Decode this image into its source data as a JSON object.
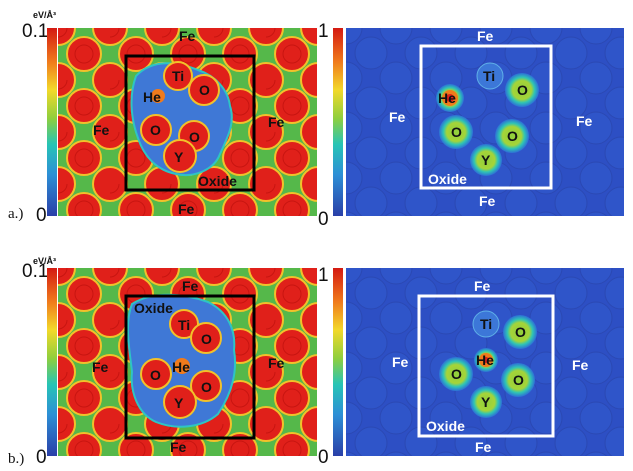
{
  "scale_left": {
    "max": "0.1",
    "min": "0",
    "unit": "eV/Å³"
  },
  "scale_right": {
    "max": "1",
    "min": "0"
  },
  "captions": {
    "a": "a.)",
    "b": "b.)"
  },
  "labels": {
    "fe": "Fe",
    "ti": "Ti",
    "he": "He",
    "o": "O",
    "y": "Y",
    "oxide": "Oxide"
  },
  "colors": {
    "matrix_green": "#55b84a",
    "atom_red": "#e0201a",
    "cavity_blue": "#3f78d6",
    "elf_background": "#2d4fc4",
    "box_black": "#000000",
    "box_white": "#ffffff"
  }
}
